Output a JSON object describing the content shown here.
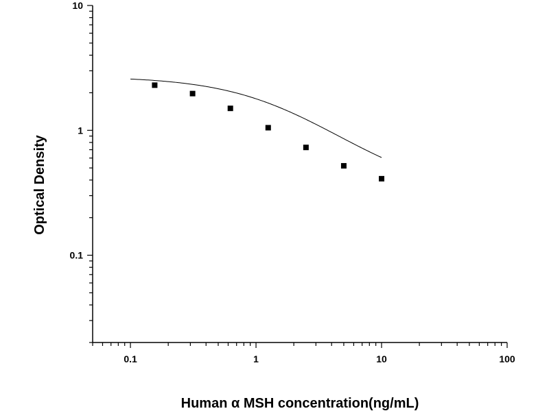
{
  "chart_data": {
    "type": "scatter",
    "title": "",
    "xlabel": "Human α MSH concentration(ng/mL)",
    "ylabel": "Optical Density",
    "x_scale": "log",
    "y_scale": "log",
    "xlim": [
      0.05,
      100
    ],
    "ylim": [
      0.02,
      10
    ],
    "x_ticks": [
      0.1,
      1,
      10,
      100
    ],
    "x_tick_labels": [
      "0.1",
      "1",
      "10",
      "100"
    ],
    "y_ticks": [
      0.1,
      1,
      10
    ],
    "y_tick_labels": [
      "0.1",
      "1",
      "10"
    ],
    "grid": false,
    "legend": "none",
    "series": [
      {
        "points": [
          {
            "x": 0.156,
            "y": 2.3
          },
          {
            "x": 0.3125,
            "y": 1.97
          },
          {
            "x": 0.625,
            "y": 1.5
          },
          {
            "x": 1.25,
            "y": 1.05
          },
          {
            "x": 2.5,
            "y": 0.73
          },
          {
            "x": 5,
            "y": 0.52
          },
          {
            "x": 10,
            "y": 0.41
          }
        ],
        "marker": "square",
        "color": "#000000"
      }
    ],
    "fit_curve": {
      "model": "4PL",
      "x_range": [
        0.1,
        10
      ],
      "color": "#000000",
      "params": {
        "top": 2.7,
        "bottom": 0.3,
        "ec50": 1.6,
        "hill": 1.05
      }
    }
  }
}
